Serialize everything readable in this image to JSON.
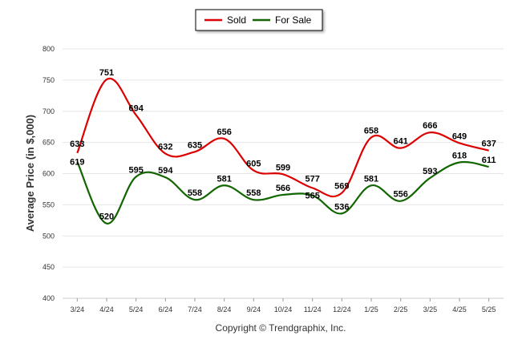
{
  "chart_data": {
    "type": "line",
    "title": "",
    "xlabel": "",
    "ylabel": "Average Price (in $,000)",
    "ylim": [
      400,
      800
    ],
    "yticks": [
      400,
      450,
      500,
      550,
      600,
      650,
      700,
      750,
      800
    ],
    "grid": true,
    "legend": "top-center",
    "categories": [
      "3/24",
      "4/24",
      "5/24",
      "6/24",
      "7/24",
      "8/24",
      "9/24",
      "10/24",
      "11/24",
      "12/24",
      "1/25",
      "2/25",
      "3/25",
      "4/25",
      "5/25"
    ],
    "series": [
      {
        "name": "Sold",
        "color": "#dd0000",
        "values": [
          633,
          751,
          694,
          632,
          635,
          656,
          605,
          599,
          577,
          569,
          658,
          641,
          666,
          649,
          637
        ]
      },
      {
        "name": "For Sale",
        "color": "#116600",
        "values": [
          619,
          520,
          595,
          594,
          558,
          581,
          558,
          566,
          565,
          536,
          581,
          556,
          593,
          618,
          611
        ]
      }
    ]
  },
  "footer": {
    "copyright": "Copyright © Trendgraphix, Inc."
  }
}
